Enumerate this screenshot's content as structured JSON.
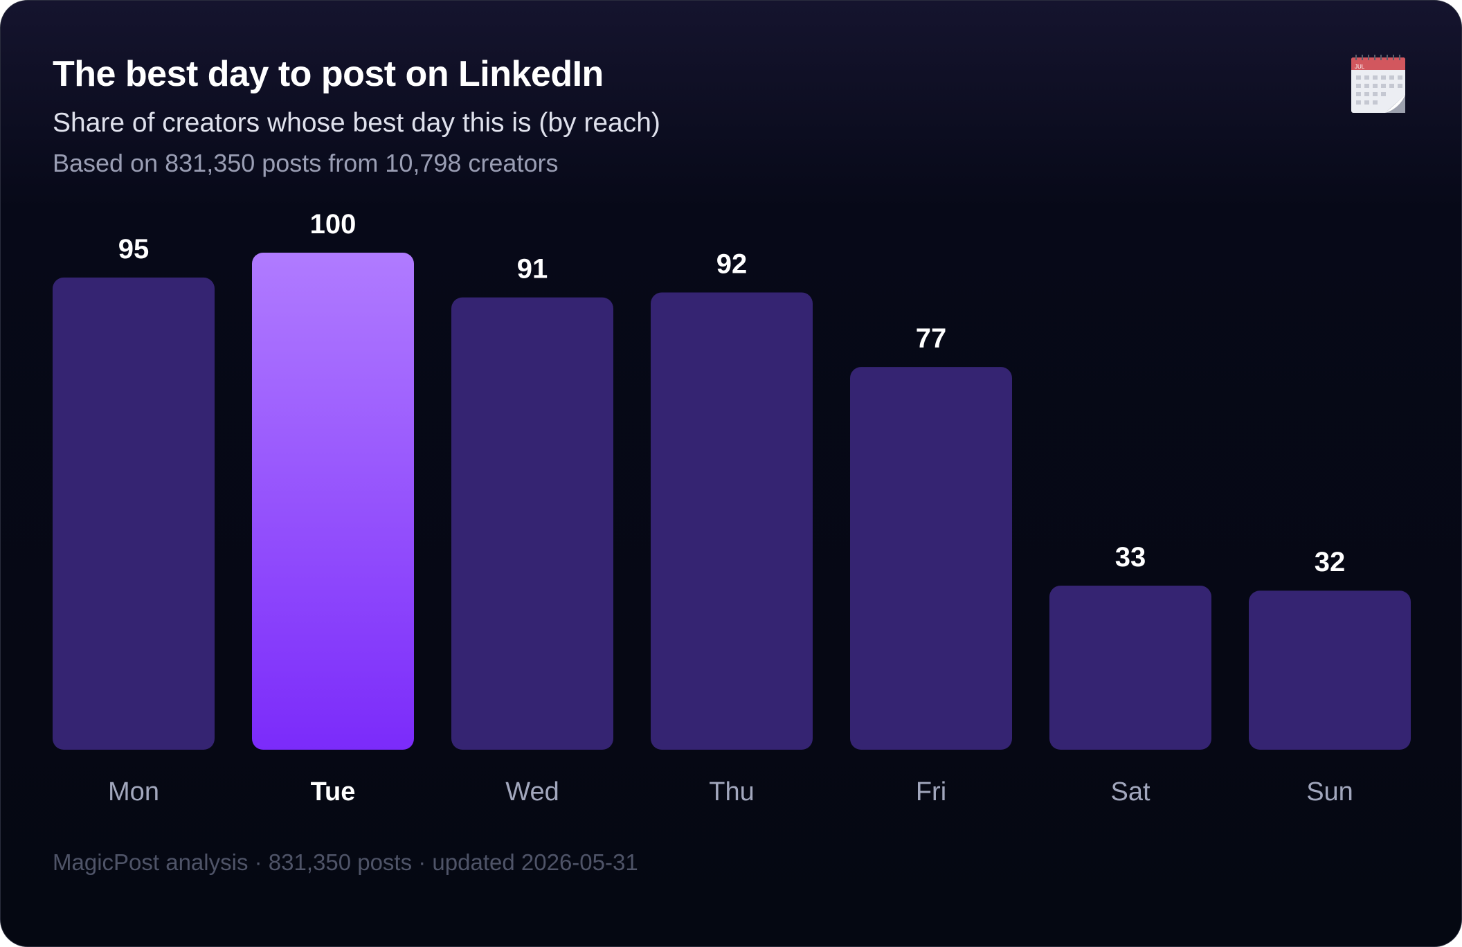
{
  "header": {
    "title": "The best day to post on LinkedIn",
    "subtitle": "Share of creators whose best day this is (by reach)",
    "basis": "Based on 831,350 posts from 10,798 creators",
    "icon": "calendar-icon",
    "icon_month_text": "JUL"
  },
  "footer": {
    "text": "MagicPost analysis · 831,350 posts · updated 2026-05-31"
  },
  "colors": {
    "background": "#070918",
    "bar": "#352472",
    "highlight_top": "#b07bff",
    "highlight_bottom": "#7b2bfa",
    "value_label": "#ffffff",
    "category_label": "#a2a7bd",
    "category_label_highlight": "#ffffff"
  },
  "chart_data": {
    "type": "bar",
    "categories": [
      "Mon",
      "Tue",
      "Wed",
      "Thu",
      "Fri",
      "Sat",
      "Sun"
    ],
    "values": [
      95,
      100,
      91,
      92,
      77,
      33,
      32
    ],
    "highlight": "Tue",
    "title": "The best day to post on LinkedIn",
    "xlabel": "",
    "ylabel": "",
    "ylim": [
      0,
      100
    ],
    "grid": false,
    "legend": "none"
  }
}
